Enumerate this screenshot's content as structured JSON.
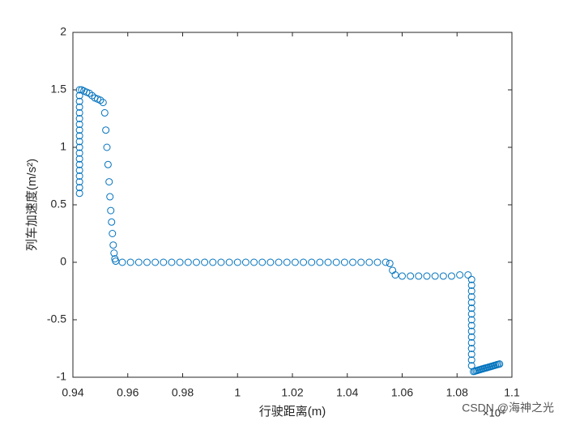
{
  "chart_data": {
    "type": "scatter",
    "xlabel": "行驶距离(m)",
    "ylabel": "列车加速度(m/s²)",
    "x_exponent_label": "×10⁴",
    "watermark": "CSDN @海神之光",
    "xlim": [
      0.94,
      1.1
    ],
    "xticks": [
      0.94,
      0.96,
      0.98,
      1,
      1.02,
      1.04,
      1.06,
      1.08,
      1.1
    ],
    "ylim": [
      -1,
      2
    ],
    "yticks": [
      -1,
      -0.5,
      0,
      0.5,
      1,
      1.5,
      2
    ],
    "grid": false,
    "box": true,
    "series": [
      {
        "color": "#0072bd",
        "x": [
          0.9424,
          0.9424,
          0.9424,
          0.9424,
          0.9424,
          0.9424,
          0.9424,
          0.9424,
          0.9424,
          0.9424,
          0.9424,
          0.9424,
          0.9424,
          0.9424,
          0.9424,
          0.9424,
          0.9424,
          0.9424,
          0.9424,
          0.9432,
          0.944,
          0.945,
          0.946,
          0.947,
          0.948,
          0.949,
          0.95,
          0.951,
          0.9516,
          0.952,
          0.9524,
          0.9528,
          0.9532,
          0.9535,
          0.9538,
          0.9541,
          0.9544,
          0.9547,
          0.955,
          0.9553,
          0.9556,
          0.958,
          0.961,
          0.964,
          0.967,
          0.97,
          0.973,
          0.976,
          0.979,
          0.982,
          0.985,
          0.988,
          0.991,
          0.994,
          0.997,
          1,
          1.003,
          1.006,
          1.009,
          1.012,
          1.015,
          1.018,
          1.021,
          1.024,
          1.027,
          1.03,
          1.033,
          1.036,
          1.039,
          1.042,
          1.045,
          1.048,
          1.051,
          1.054,
          1.0555,
          1.0565,
          1.0575,
          1.06,
          1.063,
          1.066,
          1.069,
          1.072,
          1.075,
          1.078,
          1.081,
          1.084,
          1.0853,
          1.0853,
          1.0853,
          1.0853,
          1.0853,
          1.0853,
          1.0853,
          1.0853,
          1.0853,
          1.0853,
          1.0853,
          1.0853,
          1.0853,
          1.0853,
          1.0853,
          1.0853,
          1.086,
          1.0865,
          1.087,
          1.0875,
          1.088,
          1.0885,
          1.089,
          1.0895,
          1.09,
          1.0905,
          1.091,
          1.0915,
          1.092,
          1.0925,
          1.093,
          1.0935,
          1.094,
          1.0945,
          1.095,
          1.0955
        ],
        "values": [
          0.6,
          0.65,
          0.7,
          0.75,
          0.8,
          0.85,
          0.9,
          0.95,
          1,
          1.05,
          1.1,
          1.15,
          1.2,
          1.25,
          1.3,
          1.35,
          1.4,
          1.45,
          1.5,
          1.5,
          1.49,
          1.48,
          1.47,
          1.45,
          1.43,
          1.42,
          1.41,
          1.39,
          1.3,
          1.15,
          1,
          0.85,
          0.7,
          0.57,
          0.45,
          0.35,
          0.25,
          0.15,
          0.08,
          0.03,
          0.01,
          0,
          0,
          0,
          0,
          0,
          0,
          0,
          0,
          0,
          0,
          0,
          0,
          0,
          0,
          0,
          0,
          0,
          0,
          0,
          0,
          0,
          0,
          0,
          0,
          0,
          0,
          0,
          0,
          0,
          0,
          0,
          0,
          0,
          -0.01,
          -0.07,
          -0.11,
          -0.12,
          -0.12,
          -0.12,
          -0.12,
          -0.12,
          -0.12,
          -0.12,
          -0.11,
          -0.11,
          -0.15,
          -0.2,
          -0.25,
          -0.3,
          -0.35,
          -0.4,
          -0.45,
          -0.5,
          -0.55,
          -0.6,
          -0.65,
          -0.7,
          -0.75,
          -0.8,
          -0.85,
          -0.9,
          -0.95,
          -0.947,
          -0.943,
          -0.94,
          -0.936,
          -0.933,
          -0.929,
          -0.926,
          -0.922,
          -0.919,
          -0.916,
          -0.912,
          -0.909,
          -0.905,
          -0.902,
          -0.898,
          -0.895,
          -0.891,
          -0.888,
          -0.885
        ]
      }
    ]
  }
}
